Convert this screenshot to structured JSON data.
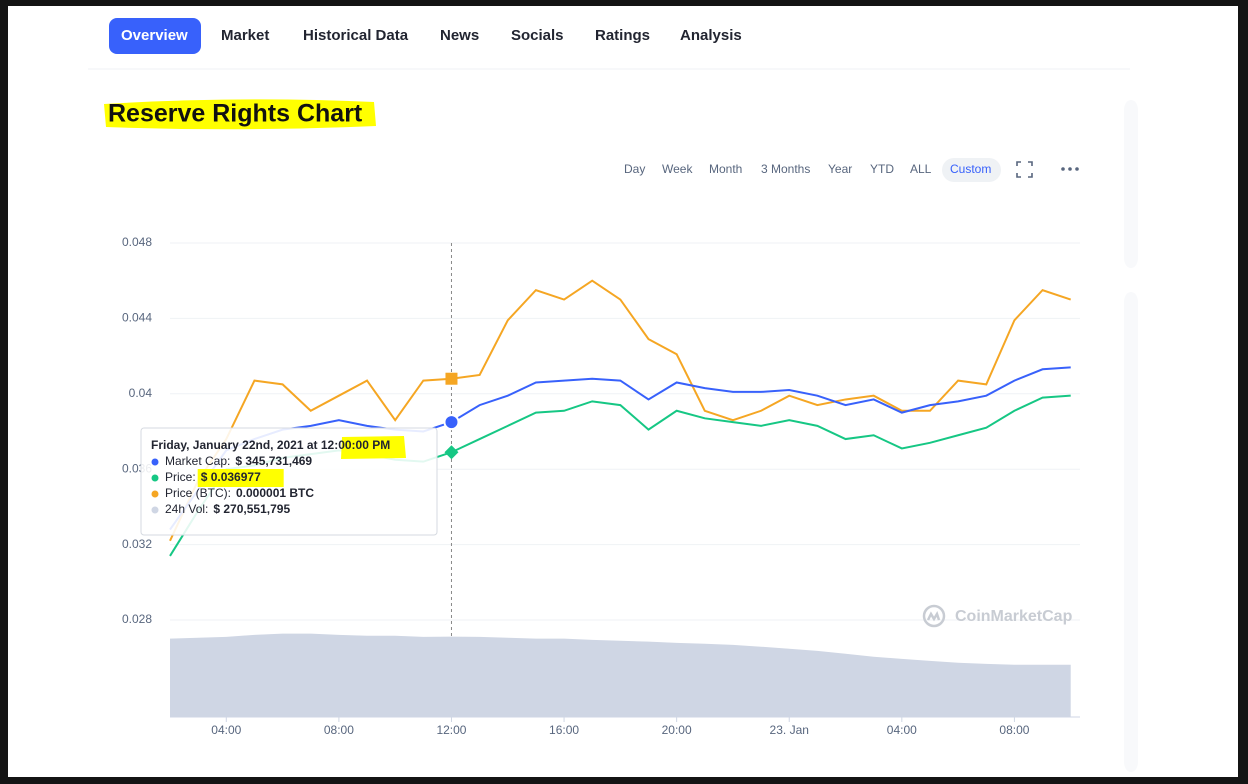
{
  "nav": {
    "tabs": [
      "Overview",
      "Market",
      "Historical Data",
      "News",
      "Socials",
      "Ratings",
      "Analysis"
    ]
  },
  "title": "Reserve Rights Chart",
  "ranges": [
    "Day",
    "Week",
    "Month",
    "3 Months",
    "Year",
    "YTD",
    "ALL",
    "Custom"
  ],
  "chart_data": {
    "type": "line",
    "x": [
      2,
      3,
      4,
      5,
      6,
      7,
      8,
      9,
      10,
      11,
      12,
      13,
      14,
      15,
      16,
      17,
      18,
      19,
      20,
      21,
      22,
      23,
      24,
      25,
      26,
      27,
      28,
      29,
      30,
      31,
      32,
      33,
      34
    ],
    "xlim": [
      2,
      34.33
    ],
    "xticks": [
      {
        "value": 4,
        "label": "04:00"
      },
      {
        "value": 8,
        "label": "08:00"
      },
      {
        "value": 12,
        "label": "12:00"
      },
      {
        "value": 16,
        "label": "16:00"
      },
      {
        "value": 20,
        "label": "20:00"
      },
      {
        "value": 24,
        "label": "23. Jan"
      },
      {
        "value": 28,
        "label": "04:00"
      },
      {
        "value": 32,
        "label": "08:00"
      }
    ],
    "ylim": [
      0.028,
      0.048
    ],
    "yticks": [
      0.028,
      0.032,
      0.036,
      0.04,
      0.044,
      0.048
    ],
    "y2lim": [
      0,
      300000000
    ],
    "grid": true,
    "series": [
      {
        "color": "#3861fb",
        "values": [
          0.0328,
          0.0349,
          0.037,
          0.0376,
          0.0381,
          0.0383,
          0.0386,
          0.0383,
          0.0381,
          0.038,
          0.0385,
          0.0394,
          0.0399,
          0.0406,
          0.0407,
          0.0408,
          0.0407,
          0.0397,
          0.0406,
          0.0403,
          0.0401,
          0.0401,
          0.0402,
          0.0399,
          0.0394,
          0.0397,
          0.039,
          0.0394,
          0.0396,
          0.0399,
          0.0407,
          0.0413,
          0.0414
        ]
      },
      {
        "color": "#16c784",
        "values": [
          0.0314,
          0.0338,
          0.036,
          0.0362,
          0.0366,
          0.0368,
          0.037,
          0.0368,
          0.0365,
          0.0364,
          0.0369,
          0.0376,
          0.0383,
          0.039,
          0.0391,
          0.0396,
          0.0394,
          0.0381,
          0.0391,
          0.0387,
          0.0385,
          0.0383,
          0.0386,
          0.0383,
          0.0376,
          0.0378,
          0.0371,
          0.0374,
          0.0378,
          0.0382,
          0.0391,
          0.0398,
          0.0399
        ]
      },
      {
        "color": "#f5a623",
        "values": [
          0.0322,
          0.0354,
          0.0376,
          0.0407,
          0.0405,
          0.0391,
          0.0399,
          0.0407,
          0.0386,
          0.0407,
          0.0408,
          0.041,
          0.0439,
          0.0455,
          0.045,
          0.046,
          0.045,
          0.0429,
          0.0421,
          0.0391,
          0.0386,
          0.0391,
          0.0399,
          0.0394,
          0.0397,
          0.0399,
          0.0391,
          0.0391,
          0.0407,
          0.0405,
          0.0439,
          0.0455,
          0.045
        ]
      },
      {
        "color": "#cfd6e4",
        "axis": "y2",
        "values": [
          264000000,
          267000000,
          270000000,
          277000000,
          281000000,
          281000000,
          277000000,
          274000000,
          274000000,
          270000000,
          271000000,
          270000000,
          267000000,
          264000000,
          264000000,
          260000000,
          257000000,
          254000000,
          250000000,
          247000000,
          243000000,
          237000000,
          230000000,
          223000000,
          213000000,
          203000000,
          196000000,
          189000000,
          183000000,
          179000000,
          176000000,
          176000000,
          176000000
        ]
      }
    ],
    "watermark": "CoinMarketCap",
    "hover_x": 12,
    "tooltip": {
      "title": "Friday, January 22nd, 2021 at 12:00:00 PM",
      "items": [
        {
          "label": "Market Cap:",
          "value": "$ 345,731,469"
        },
        {
          "label": "Price:",
          "value": "$ 0.036977"
        },
        {
          "label": "Price (BTC):",
          "value": "0.000001 BTC"
        },
        {
          "label": "24h Vol:",
          "value": "$ 270,551,795"
        }
      ]
    }
  }
}
